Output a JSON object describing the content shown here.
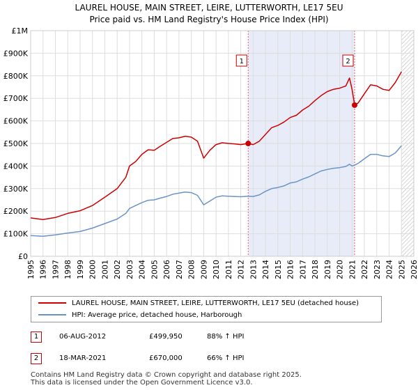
{
  "title_line1": "LAUREL HOUSE, MAIN STREET, LEIRE, LUTTERWORTH, LE17 5EU",
  "title_line2": "Price paid vs. HM Land Registry's House Price Index (HPI)",
  "colors": {
    "price": "#cc0000",
    "hpi": "#6a93c8",
    "highlight": "#e8ecf8",
    "grid": "#dddddd"
  },
  "chart_data": {
    "type": "line",
    "xlim": [
      1995,
      2026
    ],
    "ylim": [
      0,
      1000000
    ],
    "x_ticks": [
      "1995",
      "1996",
      "1997",
      "1998",
      "1999",
      "2000",
      "2001",
      "2002",
      "2003",
      "2004",
      "2005",
      "2006",
      "2007",
      "2008",
      "2009",
      "2010",
      "2011",
      "2012",
      "2013",
      "2014",
      "2015",
      "2016",
      "2017",
      "2018",
      "2019",
      "2020",
      "2021",
      "2022",
      "2023",
      "2024",
      "2025",
      "2026"
    ],
    "y_ticks": [
      {
        "value": 0,
        "label": "£0"
      },
      {
        "value": 100000,
        "label": "£100K"
      },
      {
        "value": 200000,
        "label": "£200K"
      },
      {
        "value": 300000,
        "label": "£300K"
      },
      {
        "value": 400000,
        "label": "£400K"
      },
      {
        "value": 500000,
        "label": "£500K"
      },
      {
        "value": 600000,
        "label": "£600K"
      },
      {
        "value": 700000,
        "label": "£700K"
      },
      {
        "value": 800000,
        "label": "£800K"
      },
      {
        "value": 900000,
        "label": "£900K"
      },
      {
        "value": 1000000,
        "label": "£1M"
      }
    ],
    "highlight_range": [
      2012.6,
      2021.21
    ],
    "hatch_from": 2025.0,
    "series": [
      {
        "name": "LAUREL HOUSE, MAIN STREET, LEIRE, LUTTERWORTH, LE17 5EU (detached house)",
        "color": "#cc0000",
        "points": [
          [
            1995,
            170000
          ],
          [
            1996,
            163000
          ],
          [
            1997,
            172000
          ],
          [
            1998,
            190000
          ],
          [
            1999,
            202000
          ],
          [
            2000,
            225000
          ],
          [
            2001,
            262000
          ],
          [
            2002,
            300000
          ],
          [
            2002.7,
            350000
          ],
          [
            2003,
            400000
          ],
          [
            2003.5,
            420000
          ],
          [
            2004,
            452000
          ],
          [
            2004.5,
            472000
          ],
          [
            2005,
            470000
          ],
          [
            2005.5,
            488000
          ],
          [
            2006,
            505000
          ],
          [
            2006.5,
            522000
          ],
          [
            2007,
            525000
          ],
          [
            2007.5,
            532000
          ],
          [
            2008,
            528000
          ],
          [
            2008.5,
            510000
          ],
          [
            2009,
            435000
          ],
          [
            2009.5,
            470000
          ],
          [
            2010,
            495000
          ],
          [
            2010.5,
            503000
          ],
          [
            2011,
            500000
          ],
          [
            2011.5,
            498000
          ],
          [
            2012,
            495000
          ],
          [
            2012.6,
            499950
          ],
          [
            2013,
            495000
          ],
          [
            2013.5,
            510000
          ],
          [
            2014,
            540000
          ],
          [
            2014.5,
            570000
          ],
          [
            2015,
            580000
          ],
          [
            2015.5,
            595000
          ],
          [
            2016,
            615000
          ],
          [
            2016.5,
            625000
          ],
          [
            2017,
            648000
          ],
          [
            2017.5,
            665000
          ],
          [
            2018,
            690000
          ],
          [
            2018.5,
            712000
          ],
          [
            2019,
            730000
          ],
          [
            2019.5,
            740000
          ],
          [
            2020,
            745000
          ],
          [
            2020.5,
            755000
          ],
          [
            2020.8,
            790000
          ],
          [
            2021,
            740000
          ],
          [
            2021.21,
            670000
          ],
          [
            2021.5,
            680000
          ],
          [
            2022,
            720000
          ],
          [
            2022.5,
            760000
          ],
          [
            2023,
            755000
          ],
          [
            2023.5,
            740000
          ],
          [
            2024,
            735000
          ],
          [
            2024.5,
            770000
          ],
          [
            2025,
            818000
          ]
        ]
      },
      {
        "name": "HPI: Average price, detached house, Harborough",
        "color": "#6a93c8",
        "points": [
          [
            1995,
            92000
          ],
          [
            1996,
            89000
          ],
          [
            1997,
            95000
          ],
          [
            1998,
            103000
          ],
          [
            1999,
            110000
          ],
          [
            2000,
            125000
          ],
          [
            2001,
            145000
          ],
          [
            2002,
            165000
          ],
          [
            2002.7,
            190000
          ],
          [
            2003,
            212000
          ],
          [
            2003.5,
            225000
          ],
          [
            2004,
            238000
          ],
          [
            2004.5,
            248000
          ],
          [
            2005,
            250000
          ],
          [
            2005.5,
            258000
          ],
          [
            2006,
            265000
          ],
          [
            2006.5,
            275000
          ],
          [
            2007,
            280000
          ],
          [
            2007.5,
            285000
          ],
          [
            2008,
            282000
          ],
          [
            2008.5,
            270000
          ],
          [
            2009,
            228000
          ],
          [
            2009.5,
            245000
          ],
          [
            2010,
            262000
          ],
          [
            2010.5,
            268000
          ],
          [
            2011,
            266000
          ],
          [
            2011.5,
            265000
          ],
          [
            2012,
            264000
          ],
          [
            2012.6,
            266000
          ],
          [
            2013,
            265000
          ],
          [
            2013.5,
            272000
          ],
          [
            2014,
            288000
          ],
          [
            2014.5,
            300000
          ],
          [
            2015,
            305000
          ],
          [
            2015.5,
            312000
          ],
          [
            2016,
            325000
          ],
          [
            2016.5,
            330000
          ],
          [
            2017,
            342000
          ],
          [
            2017.5,
            352000
          ],
          [
            2018,
            365000
          ],
          [
            2018.5,
            378000
          ],
          [
            2019,
            385000
          ],
          [
            2019.5,
            390000
          ],
          [
            2020,
            393000
          ],
          [
            2020.5,
            398000
          ],
          [
            2020.8,
            408000
          ],
          [
            2021,
            400000
          ],
          [
            2021.21,
            404000
          ],
          [
            2021.5,
            412000
          ],
          [
            2022,
            432000
          ],
          [
            2022.5,
            452000
          ],
          [
            2023,
            452000
          ],
          [
            2023.5,
            445000
          ],
          [
            2024,
            442000
          ],
          [
            2024.5,
            458000
          ],
          [
            2025,
            490000
          ]
        ]
      }
    ],
    "annotations": [
      {
        "label": "1",
        "x": 2012.6,
        "y": 499950
      },
      {
        "label": "2",
        "x": 2021.21,
        "y": 670000
      }
    ]
  },
  "legend": {
    "price_label": "LAUREL HOUSE, MAIN STREET, LEIRE, LUTTERWORTH, LE17 5EU (detached house)",
    "hpi_label": "HPI: Average price, detached house, Harborough"
  },
  "transactions": [
    {
      "num": "1",
      "date": "06-AUG-2012",
      "price": "£499,950",
      "hpi": "88% ↑ HPI"
    },
    {
      "num": "2",
      "date": "18-MAR-2021",
      "price": "£670,000",
      "hpi": "66% ↑ HPI"
    }
  ],
  "footer_line1": "Contains HM Land Registry data © Crown copyright and database right 2025.",
  "footer_line2": "This data is licensed under the Open Government Licence v3.0."
}
